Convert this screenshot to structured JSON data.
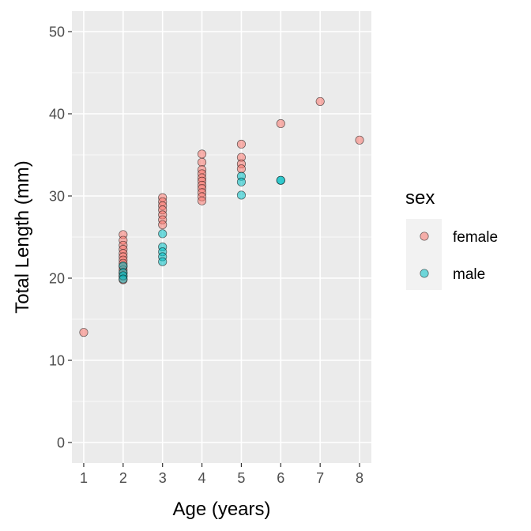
{
  "chart_data": {
    "type": "scatter",
    "xlabel": "Age (years)",
    "ylabel": "Total Length (mm)",
    "xlim": [
      0.7,
      8.3
    ],
    "ylim": [
      -2.5,
      52.5
    ],
    "xticks": [
      1,
      2,
      3,
      4,
      5,
      6,
      7,
      8
    ],
    "yticks": [
      0,
      10,
      20,
      30,
      40,
      50
    ],
    "grid": true,
    "legend": {
      "title": "sex",
      "position": "right"
    },
    "series": [
      {
        "name": "female",
        "color": "#F8766D",
        "points": [
          [
            1,
            13.4
          ],
          [
            2,
            25.3
          ],
          [
            2,
            24.6
          ],
          [
            2,
            24.0
          ],
          [
            2,
            23.5
          ],
          [
            2,
            23.0
          ],
          [
            2,
            22.6
          ],
          [
            2,
            22.2
          ],
          [
            2,
            21.8
          ],
          [
            2,
            21.4
          ],
          [
            2,
            21.0
          ],
          [
            2,
            20.6
          ],
          [
            2,
            20.2
          ],
          [
            2,
            19.8
          ],
          [
            3,
            29.8
          ],
          [
            3,
            29.3
          ],
          [
            3,
            28.8
          ],
          [
            3,
            28.3
          ],
          [
            3,
            27.7
          ],
          [
            3,
            27.1
          ],
          [
            3,
            26.5
          ],
          [
            4,
            35.1
          ],
          [
            4,
            34.1
          ],
          [
            4,
            33.2
          ],
          [
            4,
            32.7
          ],
          [
            4,
            32.2
          ],
          [
            4,
            31.8
          ],
          [
            4,
            31.3
          ],
          [
            4,
            30.9
          ],
          [
            4,
            30.4
          ],
          [
            4,
            29.9
          ],
          [
            4,
            29.4
          ],
          [
            5,
            36.3
          ],
          [
            5,
            34.7
          ],
          [
            5,
            33.9
          ],
          [
            5,
            33.3
          ],
          [
            6,
            38.8
          ],
          [
            7,
            41.5
          ],
          [
            8,
            36.8
          ]
        ]
      },
      {
        "name": "male",
        "color": "#00BFC4",
        "points": [
          [
            2,
            21.5
          ],
          [
            2,
            20.7
          ],
          [
            2,
            20.3
          ],
          [
            2,
            19.9
          ],
          [
            3,
            25.4
          ],
          [
            3,
            23.8
          ],
          [
            3,
            23.2
          ],
          [
            3,
            22.6
          ],
          [
            3,
            22.0
          ],
          [
            5,
            32.4
          ],
          [
            5,
            31.7
          ],
          [
            5,
            30.1
          ],
          [
            6,
            31.9
          ],
          [
            6,
            31.9
          ]
        ]
      }
    ]
  }
}
